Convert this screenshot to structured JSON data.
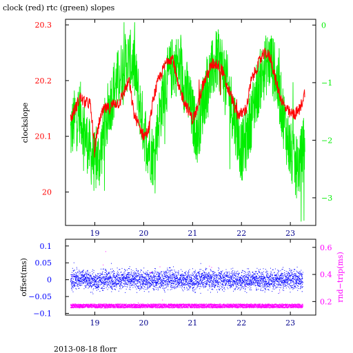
{
  "colors": {
    "clock": "#ff0000",
    "rtc": "#00ee00",
    "offset": "#0000ff",
    "rndtrip": "#ff00ff",
    "text": "#000000",
    "frame": "#000000"
  },
  "title": "clock (red) rtc (green) slopes",
  "footer": "2013-08-18 florr",
  "chart_data": [
    {
      "type": "line",
      "title": "clock (red) rtc (green) slopes",
      "xlabel": "",
      "ylabel": "clockslope",
      "xlim": [
        18.4,
        23.52
      ],
      "ylim": [
        19.94,
        20.31
      ],
      "y2lim": [
        -3.48,
        0.1
      ],
      "xticks": [
        19,
        20,
        21,
        22,
        23
      ],
      "xtick_labels": [
        "19",
        "20",
        "21",
        "22",
        "23"
      ],
      "yticks": [
        20,
        20.1,
        20.2,
        20.3
      ],
      "ytick_labels": [
        "20",
        "20.1",
        "20.2",
        "20.3"
      ],
      "y2ticks": [
        0,
        -1,
        -2,
        -3
      ],
      "y2tick_labels": [
        "0",
        "−1",
        "−2",
        "−3"
      ],
      "grid": false,
      "series": [
        {
          "name": "clock",
          "axis": "left",
          "x": [
            18.5,
            18.6,
            18.7,
            18.8,
            18.9,
            19.0,
            19.1,
            19.2,
            19.3,
            19.4,
            19.5,
            19.6,
            19.7,
            19.8,
            19.9,
            20.0,
            20.1,
            20.2,
            20.3,
            20.4,
            20.5,
            20.6,
            20.7,
            20.8,
            20.9,
            21.0,
            21.1,
            21.2,
            21.3,
            21.4,
            21.5,
            21.6,
            21.7,
            21.8,
            21.9,
            22.0,
            22.1,
            22.2,
            22.3,
            22.4,
            22.5,
            22.6,
            22.7,
            22.8,
            22.9,
            23.0,
            23.1,
            23.2,
            23.3
          ],
          "y": [
            20.13,
            20.15,
            20.17,
            20.16,
            20.16,
            20.08,
            20.13,
            20.15,
            20.15,
            20.16,
            20.16,
            20.18,
            20.2,
            20.14,
            20.12,
            20.1,
            20.11,
            20.17,
            20.2,
            20.22,
            20.24,
            20.24,
            20.19,
            20.17,
            20.15,
            20.13,
            20.15,
            20.19,
            20.21,
            20.23,
            20.23,
            20.22,
            20.19,
            20.17,
            20.14,
            20.14,
            20.15,
            20.2,
            20.22,
            20.24,
            20.25,
            20.24,
            20.2,
            20.17,
            20.15,
            20.14,
            20.14,
            20.15,
            20.18
          ]
        },
        {
          "name": "rtc",
          "axis": "right",
          "x": [
            18.5,
            18.6,
            18.7,
            18.8,
            18.9,
            19.0,
            19.1,
            19.2,
            19.3,
            19.4,
            19.5,
            19.6,
            19.7,
            19.8,
            19.9,
            20.0,
            20.1,
            20.2,
            20.3,
            20.4,
            20.5,
            20.6,
            20.7,
            20.8,
            20.9,
            21.0,
            21.1,
            21.2,
            21.3,
            21.4,
            21.5,
            21.6,
            21.7,
            21.8,
            21.9,
            22.0,
            22.1,
            22.2,
            22.3,
            22.4,
            22.5,
            22.6,
            22.7,
            22.8,
            22.9,
            23.0,
            23.1,
            23.2,
            23.3
          ],
          "y": [
            -1.9,
            -1.6,
            -1.5,
            -1.9,
            -2.2,
            -2.4,
            -2.3,
            -1.8,
            -1.4,
            -1.1,
            -0.9,
            -0.7,
            -0.6,
            -0.7,
            -1.3,
            -1.8,
            -2.1,
            -2.3,
            -1.7,
            -1.2,
            -0.9,
            -0.7,
            -0.7,
            -0.9,
            -1.2,
            -1.6,
            -1.9,
            -1.4,
            -1.0,
            -0.8,
            -0.6,
            -0.7,
            -1.0,
            -1.4,
            -1.8,
            -2.2,
            -2.0,
            -1.6,
            -1.2,
            -0.9,
            -0.7,
            -0.6,
            -0.9,
            -1.3,
            -1.8,
            -2.2,
            -2.5,
            -2.4,
            -2.0
          ]
        }
      ]
    },
    {
      "type": "scatter",
      "xlabel": "",
      "ylabel": "offset(ms)",
      "y2label": "rnd−trip(ms)",
      "xlim": [
        18.4,
        23.52
      ],
      "ylim": [
        -0.105,
        0.12
      ],
      "y2lim": [
        0.1,
        0.66
      ],
      "xticks": [
        19,
        20,
        21,
        22,
        23
      ],
      "xtick_labels": [
        "19",
        "20",
        "21",
        "22",
        "23"
      ],
      "yticks": [
        0.1,
        0.05,
        0,
        -0.05,
        -0.1
      ],
      "ytick_labels": [
        "0.1",
        "0.05",
        "0",
        "−0.05",
        "−0.1"
      ],
      "y2ticks": [
        0.2,
        0.4,
        0.6
      ],
      "y2tick_labels": [
        "0.2",
        "0.4",
        "0.6"
      ],
      "grid": false,
      "series": [
        {
          "name": "offset",
          "axis": "left",
          "x": [
            18.5,
            18.75,
            19.0,
            19.25,
            19.5,
            19.75,
            20.0,
            20.25,
            20.5,
            20.75,
            21.0,
            21.25,
            21.5,
            21.75,
            22.0,
            22.25,
            22.5,
            22.75,
            23.0,
            23.25
          ],
          "y": [
            0.0,
            0.005,
            -0.005,
            0.002,
            0.0,
            0.003,
            -0.002,
            0.001,
            0.004,
            0.0,
            -0.003,
            0.002,
            0.0,
            0.001,
            -0.002,
            0.003,
            0.0,
            -0.001,
            0.002,
            0.0
          ],
          "spread": 0.028
        },
        {
          "name": "rnd-trip",
          "axis": "right",
          "x": [
            18.5,
            18.75,
            19.0,
            19.25,
            19.5,
            19.75,
            20.0,
            20.25,
            20.5,
            20.75,
            21.0,
            21.25,
            21.5,
            21.75,
            22.0,
            22.25,
            22.5,
            22.75,
            23.0,
            23.25
          ],
          "y": [
            0.17,
            0.17,
            0.17,
            0.17,
            0.17,
            0.17,
            0.17,
            0.17,
            0.17,
            0.17,
            0.17,
            0.17,
            0.17,
            0.17,
            0.17,
            0.17,
            0.17,
            0.17,
            0.17,
            0.17
          ],
          "spread": 0.03
        }
      ]
    }
  ]
}
